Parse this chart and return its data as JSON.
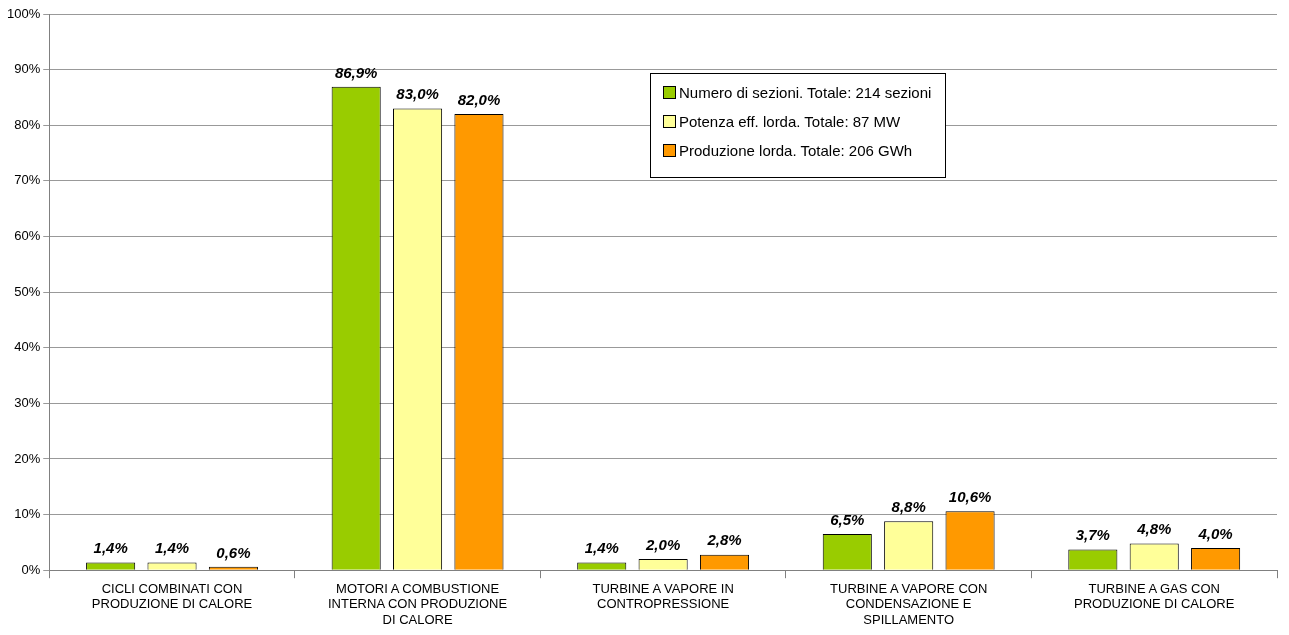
{
  "chart_data": {
    "type": "bar",
    "categories": [
      "CICLI COMBINATI CON PRODUZIONE DI CALORE",
      "MOTORI A COMBUSTIONE INTERNA CON PRODUZIONE DI CALORE",
      "TURBINE A VAPORE IN CONTROPRESSIONE",
      "TURBINE A VAPORE CON CONDENSAZIONE E SPILLAMENTO",
      "TURBINE A GAS CON PRODUZIONE DI CALORE"
    ],
    "series": [
      {
        "name": "Numero di sezioni. Totale: 214 sezioni",
        "color": "#99cc00",
        "values": [
          1.4,
          86.9,
          1.4,
          6.5,
          3.7
        ],
        "value_labels": [
          "1,4%",
          "86,9%",
          "1,4%",
          "6,5%",
          "3,7%"
        ]
      },
      {
        "name": "Potenza eff. lorda. Totale: 87 MW",
        "color": "#ffff99",
        "values": [
          1.4,
          83.0,
          2.0,
          8.8,
          4.8
        ],
        "value_labels": [
          "1,4%",
          "83,0%",
          "2,0%",
          "8,8%",
          "4,8%"
        ]
      },
      {
        "name": "Produzione lorda. Totale: 206 GWh",
        "color": "#ff9900",
        "values": [
          0.6,
          82.0,
          2.8,
          10.6,
          4.0
        ],
        "value_labels": [
          "0,6%",
          "82,0%",
          "2,8%",
          "10,6%",
          "4,0%"
        ]
      }
    ],
    "ylim": [
      0,
      100
    ],
    "yticks": [
      {
        "value": 0,
        "label": "0%"
      },
      {
        "value": 10,
        "label": "10%"
      },
      {
        "value": 20,
        "label": "20%"
      },
      {
        "value": 30,
        "label": "30%"
      },
      {
        "value": 40,
        "label": "40%"
      },
      {
        "value": 50,
        "label": "50%"
      },
      {
        "value": 60,
        "label": "60%"
      },
      {
        "value": 70,
        "label": "70%"
      },
      {
        "value": 80,
        "label": "80%"
      },
      {
        "value": 90,
        "label": "90%"
      },
      {
        "value": 100,
        "label": "100%"
      }
    ],
    "grid": "y",
    "legend": "top"
  }
}
